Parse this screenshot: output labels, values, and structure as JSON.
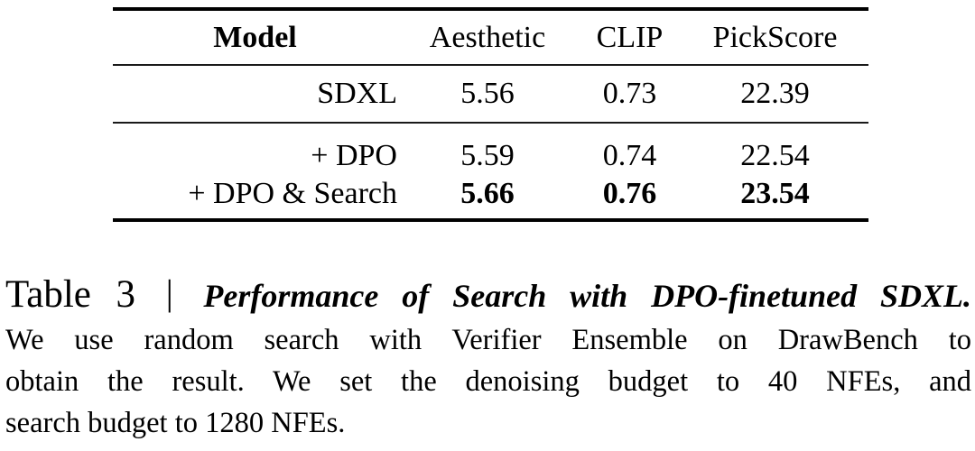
{
  "table": {
    "columns": [
      "Model",
      "Aesthetic",
      "CLIP",
      "PickScore"
    ],
    "rows": [
      {
        "model": "SDXL",
        "aesthetic": "5.56",
        "clip": "0.73",
        "pickscore": "22.39",
        "emphasis": "normal"
      },
      {
        "model": "+ DPO",
        "aesthetic": "5.59",
        "clip": "0.74",
        "pickscore": "22.54",
        "emphasis": "normal"
      },
      {
        "model": "+ DPO & Search",
        "aesthetic": "5.66",
        "clip": "0.76",
        "pickscore": "23.54",
        "emphasis": "bold"
      }
    ]
  },
  "caption": {
    "label": "Table 3",
    "separator": "|",
    "title": "Performance of Search with DPO-finetuned SDXL.",
    "line2": "We use random search with Verifier Ensemble on DrawBench to",
    "line3": "obtain the result. We set the denoising budget to 40 NFEs, and",
    "line4": "search budget to 1280 NFEs."
  },
  "colors": {
    "text": "#000000",
    "rule_thick": "#000000",
    "rule_thin": "#1a1a1a",
    "background": "#ffffff"
  }
}
